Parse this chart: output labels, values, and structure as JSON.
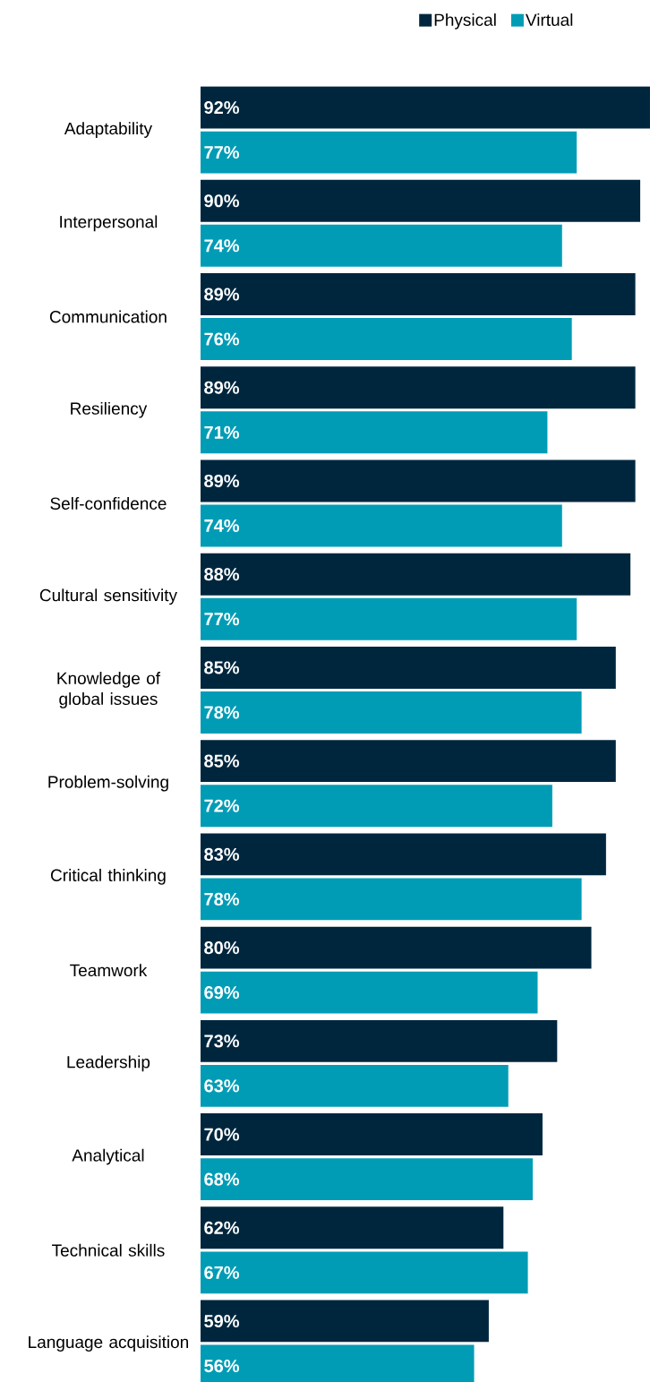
{
  "chart_data": {
    "type": "bar",
    "orientation": "horizontal",
    "legend": "top right",
    "xlim": [
      0,
      92
    ],
    "categories": [
      "Adaptability",
      "Interpersonal",
      "Communication",
      "Resiliency",
      "Self-confidence",
      "Cultural sensitivity",
      "Knowledge of global issues",
      "Problem-solving",
      "Critical thinking",
      "Teamwork",
      "Leadership",
      "Analytical",
      "Technical skills",
      "Language acquisition"
    ],
    "series": [
      {
        "name": "Physical",
        "color": "#00263e",
        "values": [
          92,
          90,
          89,
          89,
          89,
          88,
          85,
          85,
          83,
          80,
          73,
          70,
          62,
          59
        ],
        "value_labels": [
          "92%",
          "90%",
          "89%",
          "89%",
          "89%",
          "88%",
          "85%",
          "85%",
          "83%",
          "80%",
          "73%",
          "70%",
          "62%",
          "59%"
        ]
      },
      {
        "name": "Virtual",
        "color": "#009cb5",
        "values": [
          77,
          74,
          76,
          71,
          74,
          77,
          78,
          72,
          78,
          69,
          63,
          68,
          67,
          56
        ],
        "value_labels": [
          "77%",
          "74%",
          "76%",
          "71%",
          "74%",
          "77%",
          "78%",
          "72%",
          "78%",
          "69%",
          "63%",
          "68%",
          "67%",
          "56%"
        ]
      }
    ]
  }
}
